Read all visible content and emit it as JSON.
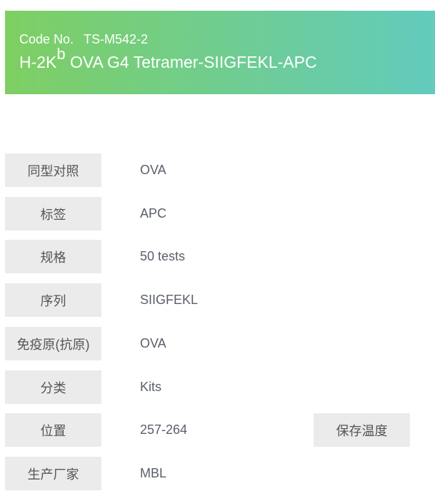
{
  "header": {
    "code_label": "Code No.",
    "code_value": "TS-M542-2",
    "title_pre": "H-2K",
    "title_sup": "b",
    "title_post": " OVA G4 Tetramer-SIIGFEKL-APC",
    "gradient": [
      "#7ecf62",
      "#62cbbd"
    ]
  },
  "rows": [
    {
      "label": "同型对照",
      "value": "OVA"
    },
    {
      "label": "标签",
      "value": "APC"
    },
    {
      "label": "规格",
      "value": "50 tests"
    },
    {
      "label": "序列",
      "value": "SIIGFEKL"
    },
    {
      "label": "免疫原(抗原)",
      "value": "OVA"
    },
    {
      "label": "分类",
      "value": "Kits"
    },
    {
      "label": "位置",
      "value": "257-264",
      "label2": "保存温度"
    },
    {
      "label": "生产厂家",
      "value": "MBL"
    }
  ]
}
